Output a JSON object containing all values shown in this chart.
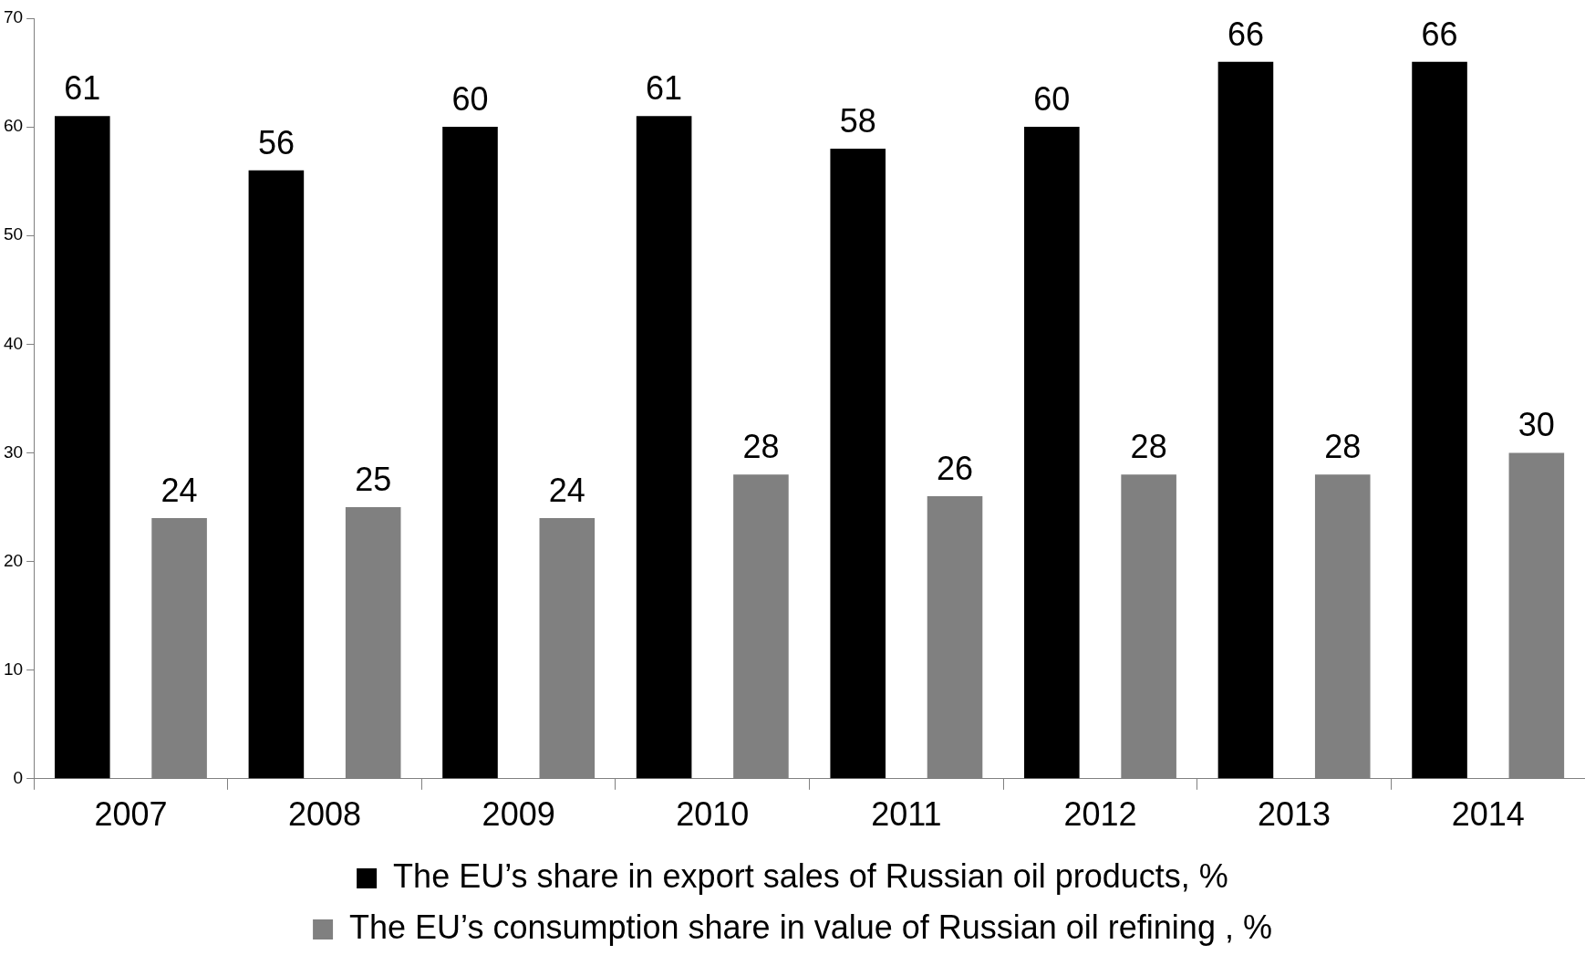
{
  "chart_data": {
    "type": "bar",
    "categories": [
      "2007",
      "2008",
      "2009",
      "2010",
      "2011",
      "2012",
      "2013",
      "2014"
    ],
    "series": [
      {
        "name": "The EU’s share in export sales of Russian oil products, %",
        "color": "#000000",
        "values": [
          61,
          56,
          60,
          61,
          58,
          60,
          66,
          66
        ]
      },
      {
        "name": "The EU’s consumption share in value of Russian oil refining , %",
        "color": "#808080",
        "values": [
          24,
          25,
          24,
          28,
          26,
          28,
          28,
          30
        ]
      }
    ],
    "ylim": [
      0,
      70
    ],
    "yticks": [
      0,
      10,
      20,
      30,
      40,
      50,
      60,
      70
    ],
    "grid": false,
    "legend": "bottom",
    "data_labels": true
  }
}
